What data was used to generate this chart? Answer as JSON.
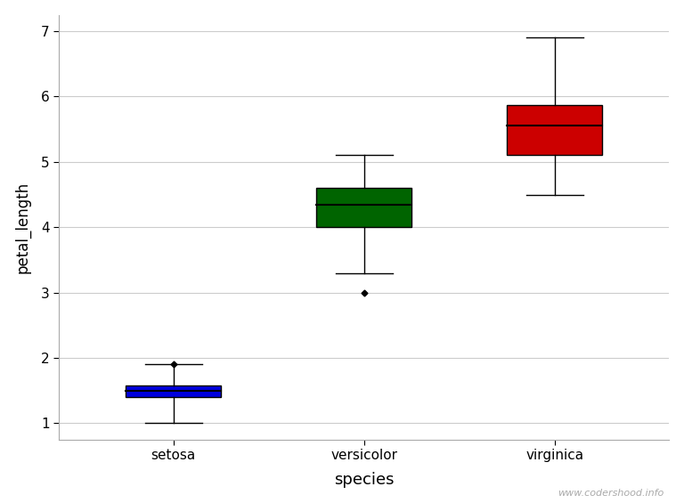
{
  "categories": [
    "setosa",
    "versicolor",
    "virginica"
  ],
  "xlabel": "species",
  "ylabel": "petal_length",
  "ylim": [
    0.75,
    7.25
  ],
  "yticks": [
    1,
    2,
    3,
    4,
    5,
    6,
    7
  ],
  "background_color": "#ffffff",
  "watermark": "www.codershood.info",
  "boxes": [
    {
      "label": "setosa",
      "q1": 1.4,
      "median": 1.5,
      "q3": 1.575,
      "whisker_low": 1.0,
      "whisker_high": 1.9,
      "outliers": [
        1.9
      ],
      "color": "#0000dd"
    },
    {
      "label": "versicolor",
      "q1": 4.0,
      "median": 4.35,
      "q3": 4.6,
      "whisker_low": 3.3,
      "whisker_high": 5.1,
      "outliers": [
        3.0
      ],
      "color": "#006400"
    },
    {
      "label": "virginica",
      "q1": 5.1,
      "median": 5.55,
      "q3": 5.875,
      "whisker_low": 4.5,
      "whisker_high": 6.9,
      "outliers": [],
      "color": "#cc0000"
    }
  ],
  "box_width": 0.5,
  "cap_ratio": 0.6,
  "figsize": [
    7.68,
    5.65
  ],
  "dpi": 100
}
